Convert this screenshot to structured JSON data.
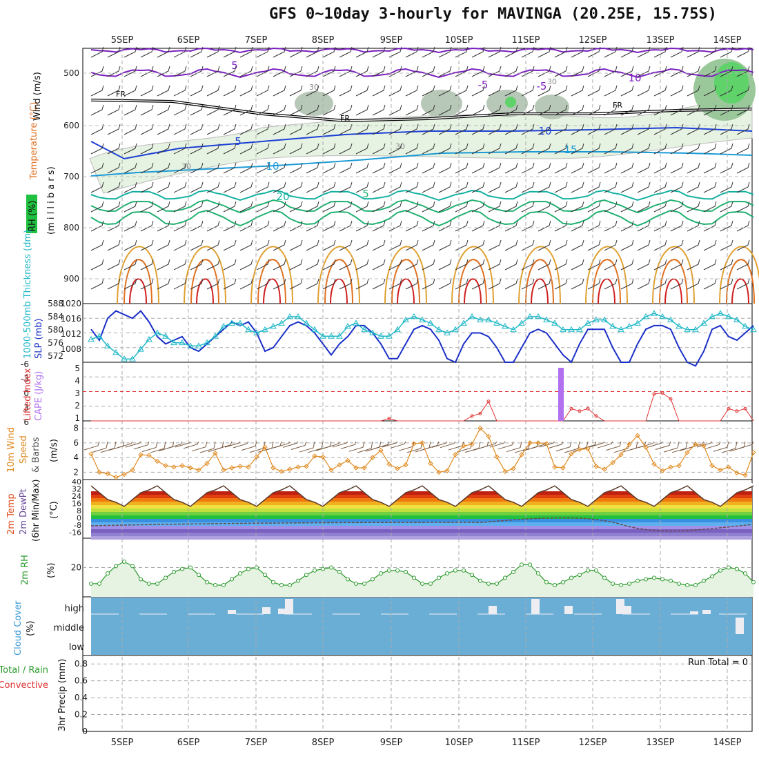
{
  "title": "GFS 0~10day 3-hourly for MAVINGA (20.25E, 15.75S)",
  "dates": [
    "5SEP",
    "6SEP",
    "7SEP",
    "8SEP",
    "9SEP",
    "10SEP",
    "11SEP",
    "12SEP",
    "13SEP",
    "14SEP"
  ],
  "colors": {
    "temp_cold": "#7a1fbf",
    "temp_fr": "#000000",
    "temp_5": "#1c3fd6",
    "temp_10": "#1a9ad6",
    "temp_15": "#12b0a0",
    "temp_20": "#20b070",
    "temp_warm": "#e0a030",
    "temp_hot": "#e07020",
    "temp_hotter": "#d02020",
    "slp": "#1a2fc8",
    "thickness": "#20b8c8",
    "lifted": "#e03030",
    "cape": "#b070f0",
    "wind10": "#e08a20",
    "rh2m": "#2a9a2a",
    "cloud_bg": "#6aaed6",
    "cloud_bar": "#eeeef2",
    "grid": "#aaaaaa"
  },
  "panels": {
    "upper": {
      "ylabel": "(m i l l i b a r s)",
      "legend_wind": "Wind (m/s)",
      "legend_temp": "Temperature (°C)",
      "legend_rh": "RH (%)",
      "levels": [
        "500",
        "600",
        "700",
        "800",
        "900"
      ],
      "contour_labels": [
        "5",
        "-5",
        "FR",
        "FR",
        "FR",
        "-5",
        "5",
        "10",
        "10",
        "15",
        "20",
        "5",
        "10",
        "30",
        "30",
        "30",
        "10",
        "30"
      ]
    },
    "slp": {
      "left_label": "1000-500mb Thickness (dm)",
      "right_label": "SLP (mb)",
      "left_ticks": [
        "588",
        "584",
        "580",
        "576",
        "572"
      ],
      "right_ticks": [
        "1020",
        "1016",
        "1012",
        "1008"
      ]
    },
    "li": {
      "left_label": "Lifted Index",
      "right_label": "CAPE (J/kg)",
      "left_ticks": [
        "-6",
        "-3",
        "0",
        "3",
        "6"
      ],
      "right_ticks": [
        "5",
        "4",
        "3",
        "2",
        "1"
      ]
    },
    "wind": {
      "left_label": "10m Wind",
      "left_label2": "Speed",
      "left_label3": "& Barbs",
      "unit": "(m/s)",
      "ticks": [
        "8",
        "6",
        "4",
        "2"
      ]
    },
    "temp": {
      "left_label": "2m Temp",
      "left_label2": "2m DewPt",
      "left_label3": "(6hr Min/Max)",
      "unit": "(°C)",
      "ticks": [
        "40",
        "32",
        "24",
        "16",
        "8",
        "0",
        "-8",
        "-16"
      ]
    },
    "rh": {
      "left_label": "2m RH",
      "unit": "(%)",
      "ticks": [
        "20"
      ]
    },
    "cloud": {
      "left_label": "Cloud Cover",
      "unit": "(%)",
      "levels": [
        "high",
        "middle",
        "low"
      ]
    },
    "precip": {
      "left_label1": "Total / Rain",
      "left_label2": "Convective",
      "axis_label": "3hr Precip (mm)",
      "ticks": [
        "0.8",
        "0.6",
        "0.4",
        "0.2",
        "0"
      ],
      "run_total": "Run Total = 0"
    }
  },
  "chart_data": [
    {
      "type": "line",
      "title": "2m RH",
      "ylabel": "(%)",
      "x": [
        0,
        1,
        2,
        3,
        4,
        5,
        6,
        7,
        8,
        9,
        10,
        11,
        12,
        13,
        14,
        15,
        16,
        17,
        18,
        19,
        20,
        21,
        22,
        23,
        24,
        25,
        26,
        27,
        28,
        29,
        30,
        31,
        32,
        33,
        34,
        35,
        36,
        37,
        38,
        39,
        40,
        41,
        42,
        43,
        44,
        45,
        46,
        47,
        48,
        49,
        50,
        51,
        52,
        53,
        54,
        55,
        56,
        57,
        58,
        59,
        60,
        61,
        62,
        63,
        64,
        65,
        66,
        67,
        68,
        69,
        70,
        71,
        72,
        73,
        74,
        75,
        76,
        77,
        78,
        79,
        80
      ],
      "series": [
        {
          "values": [
            9,
            9,
            16,
            21,
            24,
            21,
            12,
            9,
            9,
            13,
            17,
            19,
            20,
            15,
            10,
            8,
            8,
            12,
            16,
            19,
            20,
            15,
            10,
            8,
            8,
            11,
            15,
            18,
            19,
            20,
            17,
            12,
            9,
            9,
            12,
            16,
            18,
            18,
            17,
            13,
            9,
            9,
            13,
            16,
            18,
            18,
            15,
            11,
            9,
            9,
            13,
            17,
            22,
            22,
            16,
            10,
            8,
            10,
            13,
            15,
            18,
            18,
            13,
            9,
            8,
            9,
            11,
            12,
            13,
            12,
            11,
            9,
            8,
            8,
            11,
            14,
            18,
            20,
            19,
            16,
            10
          ]
        }
      ],
      "ylim": [
        0,
        40
      ]
    },
    {
      "type": "line",
      "title": "10m Wind Speed",
      "ylabel": "(m/s)",
      "x": [
        0,
        1,
        2,
        3,
        4,
        5,
        6,
        7,
        8,
        9,
        10,
        11,
        12,
        13,
        14,
        15,
        16,
        17,
        18,
        19,
        20,
        21,
        22,
        23,
        24,
        25,
        26,
        27,
        28,
        29,
        30,
        31,
        32,
        33,
        34,
        35,
        36,
        37,
        38,
        39,
        40,
        41,
        42,
        43,
        44,
        45,
        46,
        47,
        48,
        49,
        50,
        51,
        52,
        53,
        54,
        55,
        56,
        57,
        58,
        59,
        60,
        61,
        62,
        63,
        64,
        65,
        66,
        67,
        68,
        69,
        70,
        71,
        72,
        73,
        74,
        75,
        76,
        77,
        78,
        79,
        80
      ],
      "series": [
        {
          "values": [
            4.5,
            2.0,
            1.8,
            1.3,
            1.7,
            2.3,
            4.4,
            4.3,
            3.5,
            2.9,
            2.7,
            2.9,
            2.6,
            2.3,
            3.2,
            4.6,
            2.3,
            2.6,
            2.8,
            2.7,
            4.1,
            5.4,
            2.6,
            2.1,
            2.4,
            2.7,
            2.8,
            4.2,
            4.1,
            2.3,
            3.0,
            3.6,
            2.6,
            2.6,
            4.0,
            5.0,
            3.1,
            2.5,
            3.0,
            5.9,
            6.0,
            3.2,
            2.0,
            2.2,
            4.4,
            5.6,
            5.8,
            8.0,
            6.9,
            4.1,
            2.1,
            2.5,
            4.4,
            6.0,
            6.0,
            5.9,
            2.7,
            2.6,
            4.5,
            5.1,
            5.2,
            2.8,
            2.4,
            3.3,
            4.4,
            5.8,
            7.0,
            5.4,
            3.1,
            2.2,
            2.7,
            2.9,
            4.7,
            5.8,
            5.6,
            2.9,
            2.3,
            2.7,
            1.9,
            1.6,
            4.7
          ]
        }
      ],
      "ylim": [
        1,
        9
      ]
    },
    {
      "type": "line",
      "title": "SLP (mb)",
      "x": [
        0,
        1,
        2,
        3,
        4,
        5,
        6,
        7,
        8,
        9,
        10,
        11,
        12,
        13,
        14,
        15,
        16,
        17,
        18,
        19,
        20,
        21,
        22,
        23,
        24,
        25,
        26,
        27,
        28,
        29,
        30,
        31,
        32,
        33,
        34,
        35,
        36,
        37,
        38,
        39,
        40,
        41,
        42,
        43,
        44,
        45,
        46,
        47,
        48,
        49,
        50,
        51,
        52,
        53,
        54,
        55,
        56,
        57,
        58,
        59,
        60,
        61,
        62,
        63,
        64,
        65,
        66,
        67,
        68,
        69,
        70,
        71,
        72,
        73,
        74,
        75,
        76,
        77,
        78,
        79,
        80
      ],
      "series": [
        {
          "name": "SLP (mb)",
          "values": [
            1013,
            1010,
            1016,
            1018,
            1017,
            1016,
            1018,
            1015,
            1011,
            1009,
            1010,
            1011,
            1008,
            1007,
            1009,
            1011,
            1013,
            1015,
            1014,
            1015,
            1012,
            1007,
            1008,
            1011,
            1014,
            1015,
            1014,
            1012,
            1009,
            1006,
            1009,
            1011,
            1014,
            1014,
            1012,
            1009,
            1005,
            1005,
            1009,
            1013,
            1014,
            1013,
            1010,
            1005,
            1004,
            1009,
            1012,
            1012,
            1011,
            1008,
            1004,
            1004,
            1008,
            1012,
            1013,
            1012,
            1009,
            1006,
            1004,
            1009,
            1013,
            1013,
            1013,
            1008,
            1004,
            1004,
            1009,
            1013,
            1014,
            1014,
            1013,
            1008,
            1004,
            1003,
            1007,
            1013,
            1014,
            1011,
            1010,
            1012,
            1014
          ]
        }
      ],
      "ylim": [
        1004,
        1020
      ]
    },
    {
      "type": "line",
      "title": "1000-500mb Thickness (dm)",
      "x": [
        0,
        1,
        2,
        3,
        4,
        5,
        6,
        7,
        8,
        9,
        10,
        11,
        12,
        13,
        14,
        15,
        16,
        17,
        18,
        19,
        20,
        21,
        22,
        23,
        24,
        25,
        26,
        27,
        28,
        29,
        30,
        31,
        32,
        33,
        34,
        35,
        36,
        37,
        38,
        39,
        40,
        41,
        42,
        43,
        44,
        45,
        46,
        47,
        48,
        49,
        50,
        51,
        52,
        53,
        54,
        55,
        56,
        57,
        58,
        59,
        60,
        61,
        62,
        63,
        64,
        65,
        66,
        67,
        68,
        69,
        70,
        71,
        72,
        73,
        74,
        75,
        76,
        77,
        78,
        79,
        80
      ],
      "series": [
        {
          "name": "1000-500mb Thickness (dm)",
          "values": [
            577,
            578,
            575,
            573,
            571,
            571,
            574,
            577,
            579,
            578,
            576,
            576,
            575,
            575,
            576,
            578,
            581,
            582,
            582,
            580,
            579,
            580,
            581,
            582,
            584,
            584,
            582,
            580,
            578,
            578,
            578,
            581,
            582,
            580,
            579,
            578,
            578,
            580,
            583,
            584,
            583,
            582,
            580,
            579,
            580,
            582,
            584,
            583,
            583,
            582,
            581,
            580,
            582,
            584,
            584,
            583,
            582,
            580,
            580,
            580,
            582,
            583,
            583,
            581,
            580,
            581,
            582,
            584,
            585,
            584,
            583,
            581,
            580,
            580,
            582,
            584,
            585,
            584,
            583,
            581,
            580
          ]
        }
      ],
      "ylim": [
        570,
        588
      ]
    },
    {
      "type": "line",
      "title": "Lifted Index",
      "x": [
        0,
        1,
        2,
        3,
        4,
        5,
        6,
        7,
        8,
        9,
        10,
        11,
        12,
        13,
        14,
        15,
        16,
        17,
        18,
        19,
        20,
        21,
        22,
        23,
        24,
        25,
        26,
        27,
        28,
        29,
        30,
        31,
        32,
        33,
        34,
        35,
        36,
        37,
        38,
        39,
        40,
        41,
        42,
        43,
        44,
        45,
        46,
        47,
        48,
        49,
        50,
        51,
        52,
        53,
        54,
        55,
        56,
        57,
        58,
        59,
        60,
        61,
        62,
        63,
        64,
        65,
        66,
        67,
        68,
        69,
        70,
        71,
        72,
        73,
        74,
        75,
        76,
        77,
        78,
        79,
        80
      ],
      "series": [
        {
          "name": "Lifted Index",
          "values": [
            6,
            6,
            6,
            6,
            6,
            6,
            6,
            6,
            6,
            6,
            6,
            6,
            6,
            6,
            6,
            6,
            6,
            6,
            6,
            6,
            6,
            6,
            6,
            6,
            6,
            6,
            6,
            6,
            6,
            6,
            6,
            6,
            6,
            6,
            6,
            6,
            5.5,
            6,
            6,
            6,
            6,
            6,
            6,
            6,
            6,
            6,
            5,
            4.5,
            2,
            6,
            6,
            6,
            6,
            6,
            6,
            6,
            6,
            6,
            3.5,
            4,
            3.5,
            5,
            6,
            6,
            6,
            6,
            6,
            6,
            0.5,
            0.3,
            1.5,
            6,
            6,
            6,
            6,
            6,
            6,
            3.5,
            4,
            3.5,
            6
          ]
        }
      ],
      "ylim": [
        6,
        -6
      ]
    },
    {
      "type": "bar",
      "title": "CAPE (J/kg)",
      "categories": [
        "11SEP 12Z"
      ],
      "values": [
        5
      ],
      "ylim": [
        1,
        6
      ]
    },
    {
      "type": "bar",
      "title": "3hr Precip (mm)",
      "categories": [
        "5SEP",
        "6SEP",
        "7SEP",
        "8SEP",
        "9SEP",
        "10SEP",
        "11SEP",
        "12SEP",
        "13SEP",
        "14SEP"
      ],
      "values": [
        0,
        0,
        0,
        0,
        0,
        0,
        0,
        0,
        0,
        0
      ],
      "ylim": [
        0,
        0.9
      ]
    }
  ]
}
